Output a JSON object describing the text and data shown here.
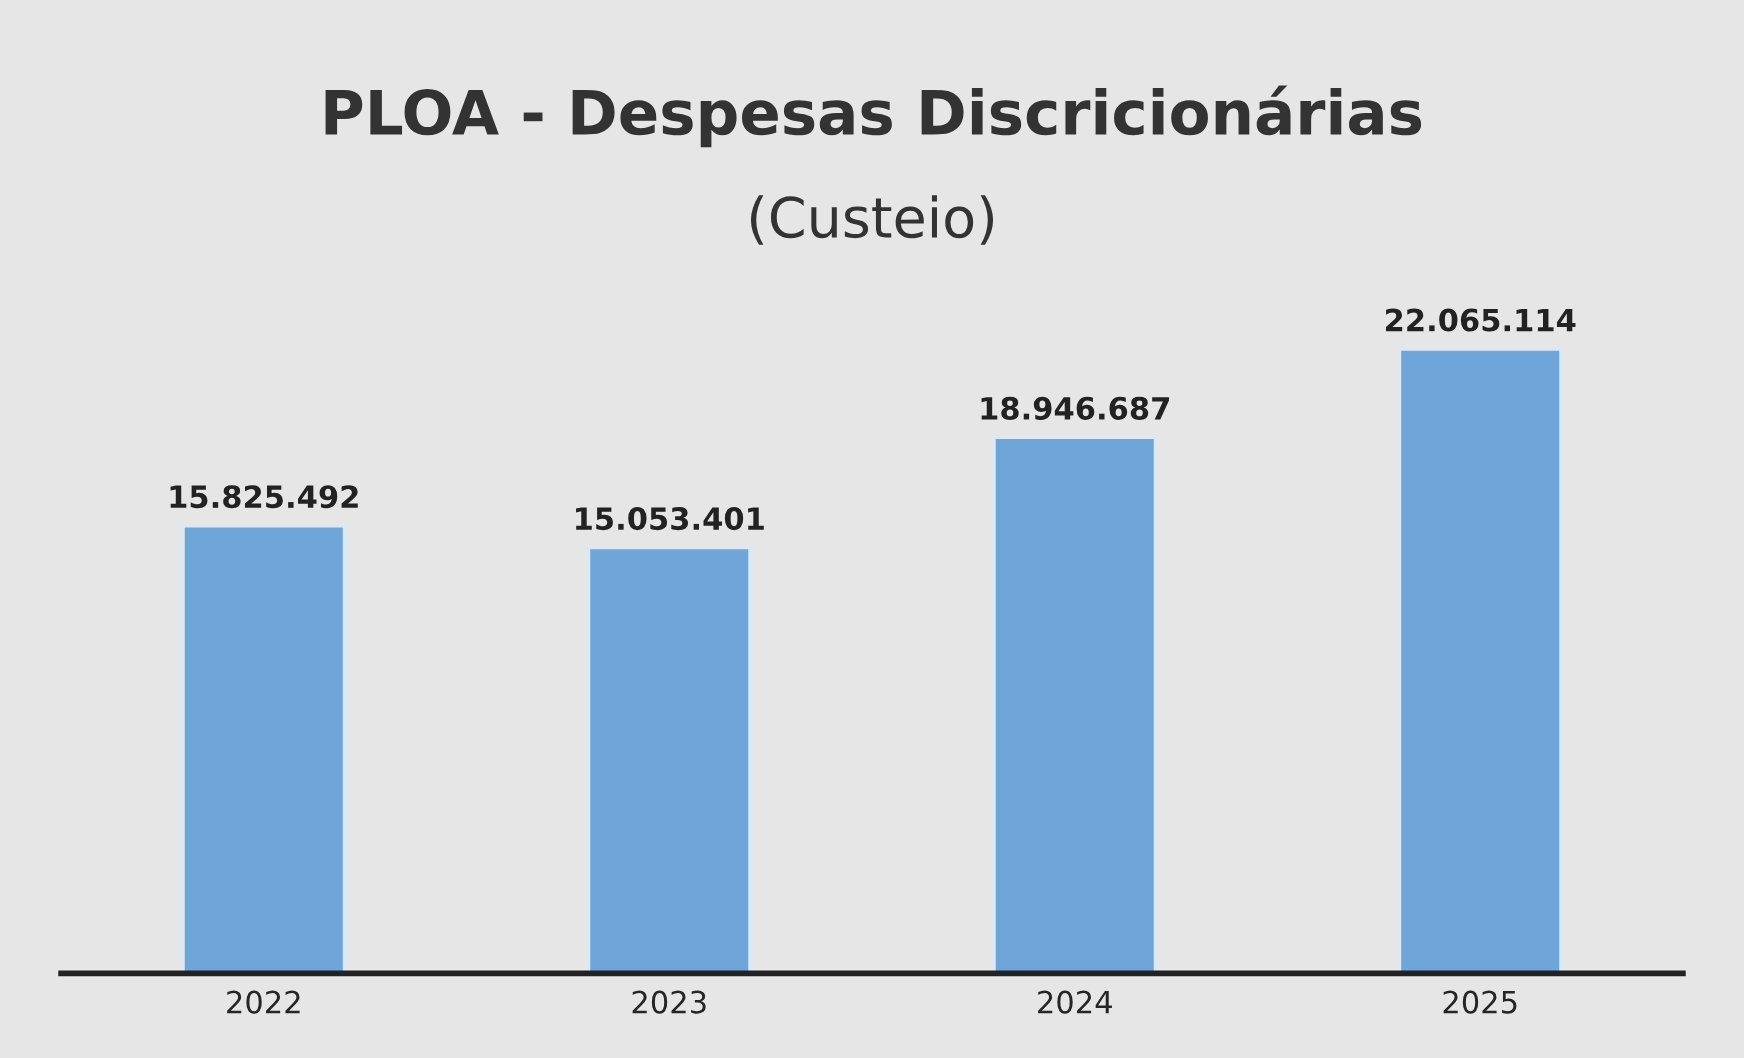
{
  "chart_data": {
    "type": "bar",
    "title": "PLOA - Despesas Discricionárias",
    "subtitle": "(Custeio)",
    "categories": [
      "2022",
      "2023",
      "2024",
      "2025"
    ],
    "series": [
      {
        "color": "#6fa6d9",
        "values": [
          15825492,
          15053401,
          18946687,
          22065114
        ],
        "value_labels": [
          "15.825.492",
          "15.053.401",
          "18.946.687",
          "22.065.114"
        ]
      }
    ],
    "grid": false,
    "legend": false
  }
}
